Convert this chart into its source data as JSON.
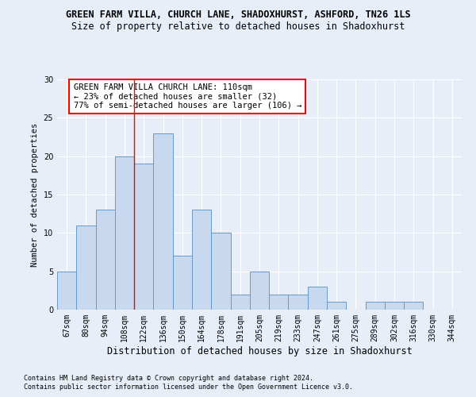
{
  "title": "GREEN FARM VILLA, CHURCH LANE, SHADOXHURST, ASHFORD, TN26 1LS",
  "subtitle": "Size of property relative to detached houses in Shadoxhurst",
  "xlabel": "Distribution of detached houses by size in Shadoxhurst",
  "ylabel": "Number of detached properties",
  "categories": [
    "67sqm",
    "80sqm",
    "94sqm",
    "108sqm",
    "122sqm",
    "136sqm",
    "150sqm",
    "164sqm",
    "178sqm",
    "191sqm",
    "205sqm",
    "219sqm",
    "233sqm",
    "247sqm",
    "261sqm",
    "275sqm",
    "289sqm",
    "302sqm",
    "316sqm",
    "330sqm",
    "344sqm"
  ],
  "values": [
    5,
    11,
    13,
    20,
    19,
    23,
    7,
    13,
    10,
    2,
    5,
    2,
    2,
    3,
    1,
    0,
    1,
    1,
    1,
    0,
    0
  ],
  "bar_color": "#c8d8ee",
  "bar_edge_color": "#6699cc",
  "bar_width": 1.0,
  "ylim": [
    0,
    30
  ],
  "yticks": [
    0,
    5,
    10,
    15,
    20,
    25,
    30
  ],
  "red_line_x": 3.5,
  "annotation_text": "GREEN FARM VILLA CHURCH LANE: 110sqm\n← 23% of detached houses are smaller (32)\n77% of semi-detached houses are larger (106) →",
  "footer_line1": "Contains HM Land Registry data © Crown copyright and database right 2024.",
  "footer_line2": "Contains public sector information licensed under the Open Government Licence v3.0.",
  "background_color": "#e8eef8",
  "plot_bg_color": "#e8eef8",
  "grid_color": "#ffffff",
  "title_fontsize": 8.5,
  "subtitle_fontsize": 8.5,
  "xlabel_fontsize": 8.5,
  "ylabel_fontsize": 7.5,
  "tick_fontsize": 7,
  "annotation_fontsize": 7.5,
  "footer_fontsize": 6.0
}
